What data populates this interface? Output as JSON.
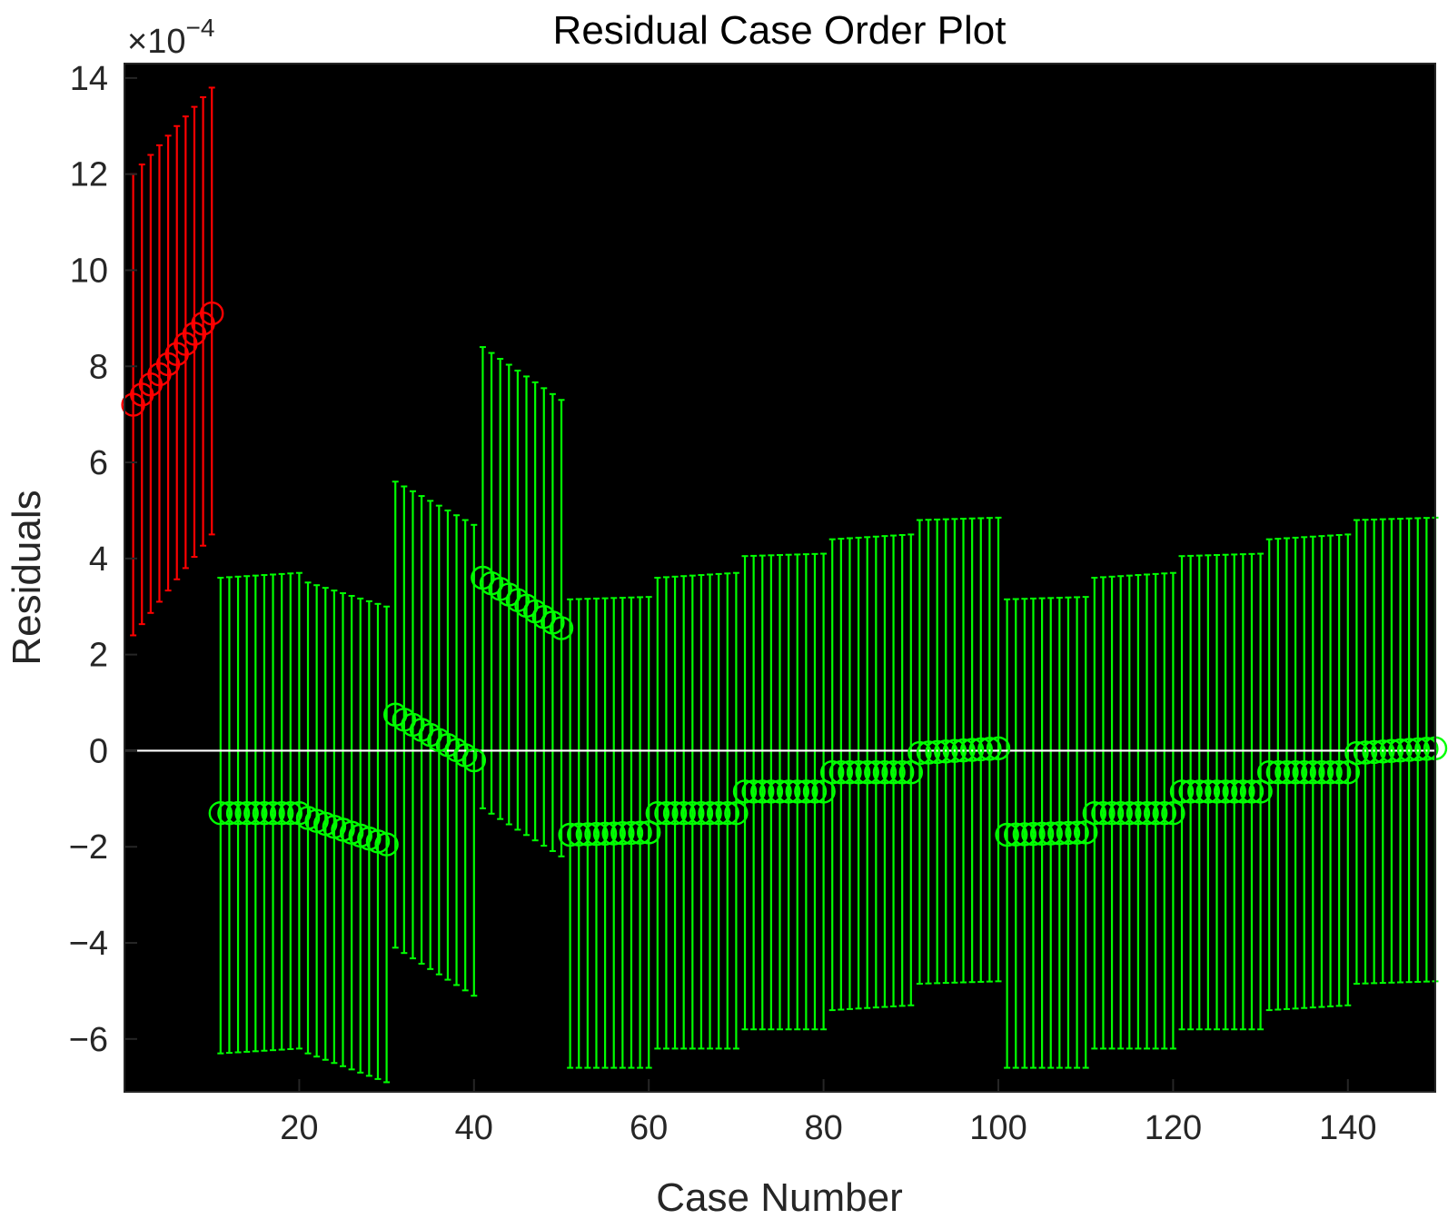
{
  "chart_data": {
    "type": "scatter",
    "title": "Residual Case Order Plot",
    "xlabel": "Case Number",
    "ylabel": "Residuals",
    "y_exponent_label": "×10",
    "y_exponent_power": "−4",
    "xlim": [
      0,
      150
    ],
    "ylim": [
      -7.1,
      14.3
    ],
    "xticks": [
      20,
      40,
      60,
      80,
      100,
      120,
      140
    ],
    "yticks": [
      -6,
      -4,
      -2,
      0,
      2,
      4,
      6,
      8,
      10,
      12,
      14
    ],
    "ytick_labels": [
      "−6",
      "−4",
      "−2",
      "0",
      "2",
      "4",
      "6",
      "8",
      "10",
      "12",
      "14"
    ],
    "grid": false,
    "background": "#000000",
    "colors": {
      "outlier": "#ff0000",
      "normal": "#00ff00",
      "zero_line": "#ffffff"
    },
    "groups": [
      {
        "start": 1,
        "end": 10,
        "res_start": 7.2,
        "res_end": 9.1,
        "lo_start": 2.4,
        "lo_end": 4.5,
        "hi_start": 12.0,
        "hi_end": 13.8,
        "outlier": true
      },
      {
        "start": 11,
        "end": 20,
        "res_start": -1.3,
        "res_end": -1.3,
        "lo_start": -6.3,
        "lo_end": -6.2,
        "hi_start": 3.6,
        "hi_end": 3.7,
        "outlier": false
      },
      {
        "start": 21,
        "end": 30,
        "res_start": -1.4,
        "res_end": -1.95,
        "lo_start": -6.3,
        "lo_end": -6.9,
        "hi_start": 3.5,
        "hi_end": 3.0,
        "outlier": false
      },
      {
        "start": 31,
        "end": 40,
        "res_start": 0.75,
        "res_end": -0.2,
        "lo_start": -4.1,
        "lo_end": -5.1,
        "hi_start": 5.6,
        "hi_end": 4.7,
        "outlier": false
      },
      {
        "start": 41,
        "end": 50,
        "res_start": 3.6,
        "res_end": 2.55,
        "lo_start": -1.2,
        "lo_end": -2.2,
        "hi_start": 8.4,
        "hi_end": 7.3,
        "outlier": false
      },
      {
        "start": 51,
        "end": 60,
        "res_start": -1.75,
        "res_end": -1.7,
        "lo_start": -6.6,
        "lo_end": -6.6,
        "hi_start": 3.15,
        "hi_end": 3.2,
        "outlier": false
      },
      {
        "start": 61,
        "end": 70,
        "res_start": -1.3,
        "res_end": -1.3,
        "lo_start": -6.2,
        "lo_end": -6.2,
        "hi_start": 3.6,
        "hi_end": 3.7,
        "outlier": false
      },
      {
        "start": 71,
        "end": 80,
        "res_start": -0.85,
        "res_end": -0.85,
        "lo_start": -5.8,
        "lo_end": -5.8,
        "hi_start": 4.05,
        "hi_end": 4.1,
        "outlier": false
      },
      {
        "start": 81,
        "end": 90,
        "res_start": -0.45,
        "res_end": -0.45,
        "lo_start": -5.4,
        "lo_end": -5.3,
        "hi_start": 4.4,
        "hi_end": 4.5,
        "outlier": false
      },
      {
        "start": 91,
        "end": 100,
        "res_start": -0.05,
        "res_end": 0.05,
        "lo_start": -4.85,
        "lo_end": -4.8,
        "hi_start": 4.8,
        "hi_end": 4.85,
        "outlier": false
      },
      {
        "start": 101,
        "end": 110,
        "res_start": -1.75,
        "res_end": -1.7,
        "lo_start": -6.6,
        "lo_end": -6.6,
        "hi_start": 3.15,
        "hi_end": 3.2,
        "outlier": false
      },
      {
        "start": 111,
        "end": 120,
        "res_start": -1.3,
        "res_end": -1.3,
        "lo_start": -6.2,
        "lo_end": -6.2,
        "hi_start": 3.6,
        "hi_end": 3.7,
        "outlier": false
      },
      {
        "start": 121,
        "end": 130,
        "res_start": -0.85,
        "res_end": -0.85,
        "lo_start": -5.8,
        "lo_end": -5.8,
        "hi_start": 4.05,
        "hi_end": 4.1,
        "outlier": false
      },
      {
        "start": 131,
        "end": 140,
        "res_start": -0.45,
        "res_end": -0.45,
        "lo_start": -5.4,
        "lo_end": -5.3,
        "hi_start": 4.4,
        "hi_end": 4.5,
        "outlier": false
      },
      {
        "start": 141,
        "end": 150,
        "res_start": -0.05,
        "res_end": 0.05,
        "lo_start": -4.85,
        "lo_end": -4.8,
        "hi_start": 4.8,
        "hi_end": 4.85,
        "outlier": false
      }
    ]
  }
}
